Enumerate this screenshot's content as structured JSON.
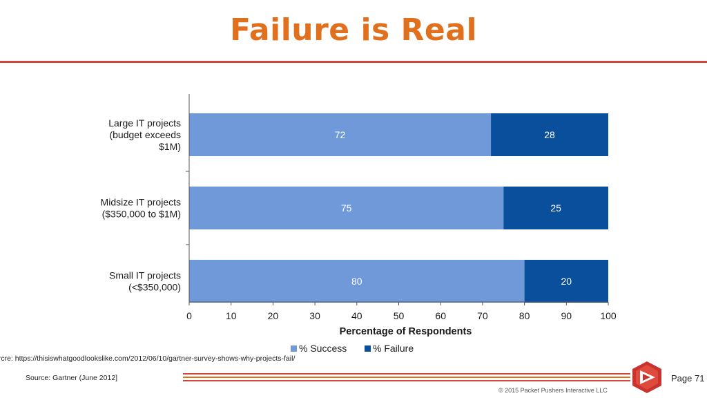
{
  "slide": {
    "title": "Failure is Real",
    "source_url": "urcre: https://thisiswhatgoodlookslike.com/2012/06/10/gartner-survey-shows-why-projects-fail/",
    "source_gartner": "Source: Gartner (June 2012]",
    "copyright": "© 2015 Packet Pushers Interactive LLC",
    "page": "Page 71"
  },
  "colors": {
    "title": "#e0701e",
    "accent_red": "#d3473b",
    "success": "#7099d9",
    "failure": "#0a4f9c"
  },
  "chart_data": {
    "type": "bar",
    "orientation": "horizontal",
    "stacked": true,
    "categories": [
      [
        "Large IT projects",
        "(budget exceeds",
        "$1M)"
      ],
      [
        "Midsize IT projects",
        "($350,000 to $1M)"
      ],
      [
        "Small IT projects",
        "(<$350,000)"
      ]
    ],
    "series": [
      {
        "name": "% Success",
        "values": [
          72,
          75,
          80
        ]
      },
      {
        "name": "% Failure",
        "values": [
          28,
          25,
          20
        ]
      }
    ],
    "xlabel": "Percentage of Respondents",
    "xlim": [
      0,
      100
    ],
    "xticks": [
      0,
      10,
      20,
      30,
      40,
      50,
      60,
      70,
      80,
      90,
      100
    ],
    "legend_position": "bottom",
    "grid": false
  }
}
